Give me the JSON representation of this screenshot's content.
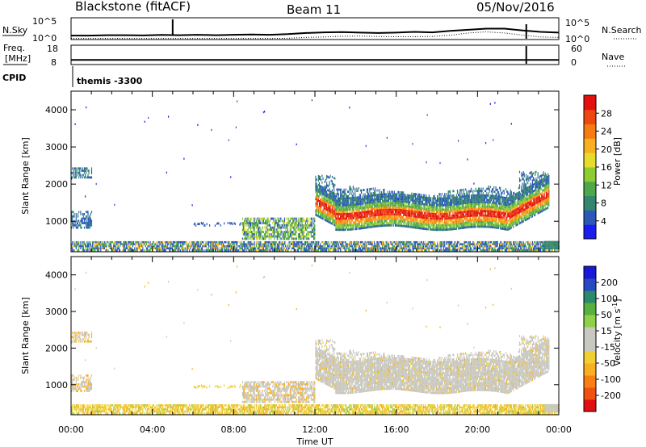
{
  "header": {
    "radar": "Blackstone (fitACF)",
    "beam": "Beam 11",
    "date": "05/Nov/2016"
  },
  "noise_panel": {
    "left_label": "N.Sky",
    "right_label": "N.Search",
    "left_ticks": [
      "10^5",
      "10^0"
    ],
    "right_ticks": [
      "10^5",
      "10^0"
    ],
    "nsky_level": [
      0.18,
      0.18,
      0.2,
      0.2,
      0.19,
      0.21,
      0.2,
      0.22,
      0.2,
      0.22,
      0.23,
      0.22,
      0.25,
      0.3,
      0.33,
      0.34,
      0.32,
      0.3,
      0.32,
      0.35,
      0.33,
      0.4,
      0.45,
      0.5,
      0.5,
      0.42,
      0.35,
      0.32
    ],
    "nsearch_level": [
      0.05,
      0.05,
      0.05,
      0.05,
      0.05,
      0.05,
      0.05,
      0.05,
      0.05,
      0.05,
      0.05,
      0.05,
      0.06,
      0.1,
      0.12,
      0.15,
      0.16,
      0.14,
      0.13,
      0.13,
      0.14,
      0.2,
      0.3,
      0.35,
      0.3,
      0.2,
      0.12,
      0.1
    ]
  },
  "freq_panel": {
    "left_label_1": "Freq.",
    "left_label_2": "[MHz]",
    "right_label": "Nave",
    "left_ticks": [
      "18",
      "8"
    ],
    "right_ticks": [
      "60",
      "0"
    ],
    "freq_mhz": 10.4,
    "cpid_label": "CPID",
    "cpid_text": "themis -3300"
  },
  "chart_data": [
    {
      "type": "heatmap",
      "name": "power",
      "xlabel": "",
      "ylabel": "Slant Range [km]",
      "xlim": [
        0,
        24
      ],
      "ylim": [
        180,
        4500
      ],
      "y_ticks": [
        "1000",
        "2000",
        "3000",
        "4000"
      ],
      "colorbar_label": "Power [dB]",
      "colorbar_ticks": [
        "4",
        "8",
        "12",
        "16",
        "20",
        "24",
        "28"
      ],
      "colorbar_colors": [
        "#1c1cf0",
        "#2a58b8",
        "#34866e",
        "#4ea84a",
        "#8fcc34",
        "#e6dc2a",
        "#f6b020",
        "#f47c10",
        "#ee4812",
        "#e41010"
      ]
    },
    {
      "type": "heatmap",
      "name": "velocity",
      "xlabel": "Time UT",
      "ylabel": "Slant Range [km]",
      "xlim": [
        0,
        24
      ],
      "ylim": [
        180,
        4500
      ],
      "x_ticks": [
        "00:00",
        "04:00",
        "08:00",
        "12:00",
        "16:00",
        "20:00",
        "00:00"
      ],
      "y_ticks": [
        "1000",
        "2000",
        "3000",
        "4000"
      ],
      "colorbar_label": "Velocity [m s",
      "colorbar_label_sup": "-1",
      "colorbar_label_end": "]",
      "colorbar_ticks": [
        "200",
        "100",
        "50",
        "15",
        "-15",
        "-50",
        "-100",
        "-200"
      ],
      "colorbar_colors": [
        "#1818d8",
        "#2a48c0",
        "#2c8a6a",
        "#58b040",
        "#8ed048",
        "#c8c8c0",
        "#c8c8c0",
        "#f0d030",
        "#f8b020",
        "#f88010",
        "#f05010",
        "#e01010"
      ]
    }
  ]
}
